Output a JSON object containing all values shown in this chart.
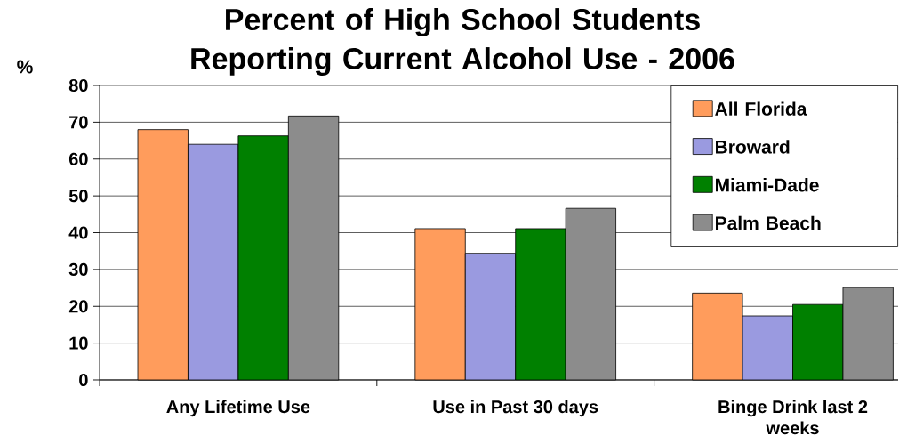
{
  "chart_data": {
    "type": "bar",
    "title": "Percent of High School Students Reporting Current Alcohol Use - 2006",
    "ylabel": "%",
    "categories": [
      "Any Lifetime Use",
      "Use in Past 30 days",
      "Binge Drink last 2 weeks"
    ],
    "series": [
      {
        "name": "All Florida",
        "color": "#ff9c5c",
        "values": [
          68,
          41.1,
          23.6
        ]
      },
      {
        "name": "Broward",
        "color": "#9a9ae0",
        "values": [
          64,
          34.4,
          17.4
        ]
      },
      {
        "name": "Miami-Dade",
        "color": "#008000",
        "values": [
          66.3,
          41.1,
          20.5
        ]
      },
      {
        "name": "Palm Beach",
        "color": "#8c8c8c",
        "values": [
          71.7,
          46.6,
          25.1
        ]
      }
    ],
    "ylim": [
      0,
      80
    ],
    "yticks": [
      0,
      10,
      20,
      30,
      40,
      50,
      60,
      70,
      80
    ],
    "grid": "y",
    "legend": "top right"
  }
}
